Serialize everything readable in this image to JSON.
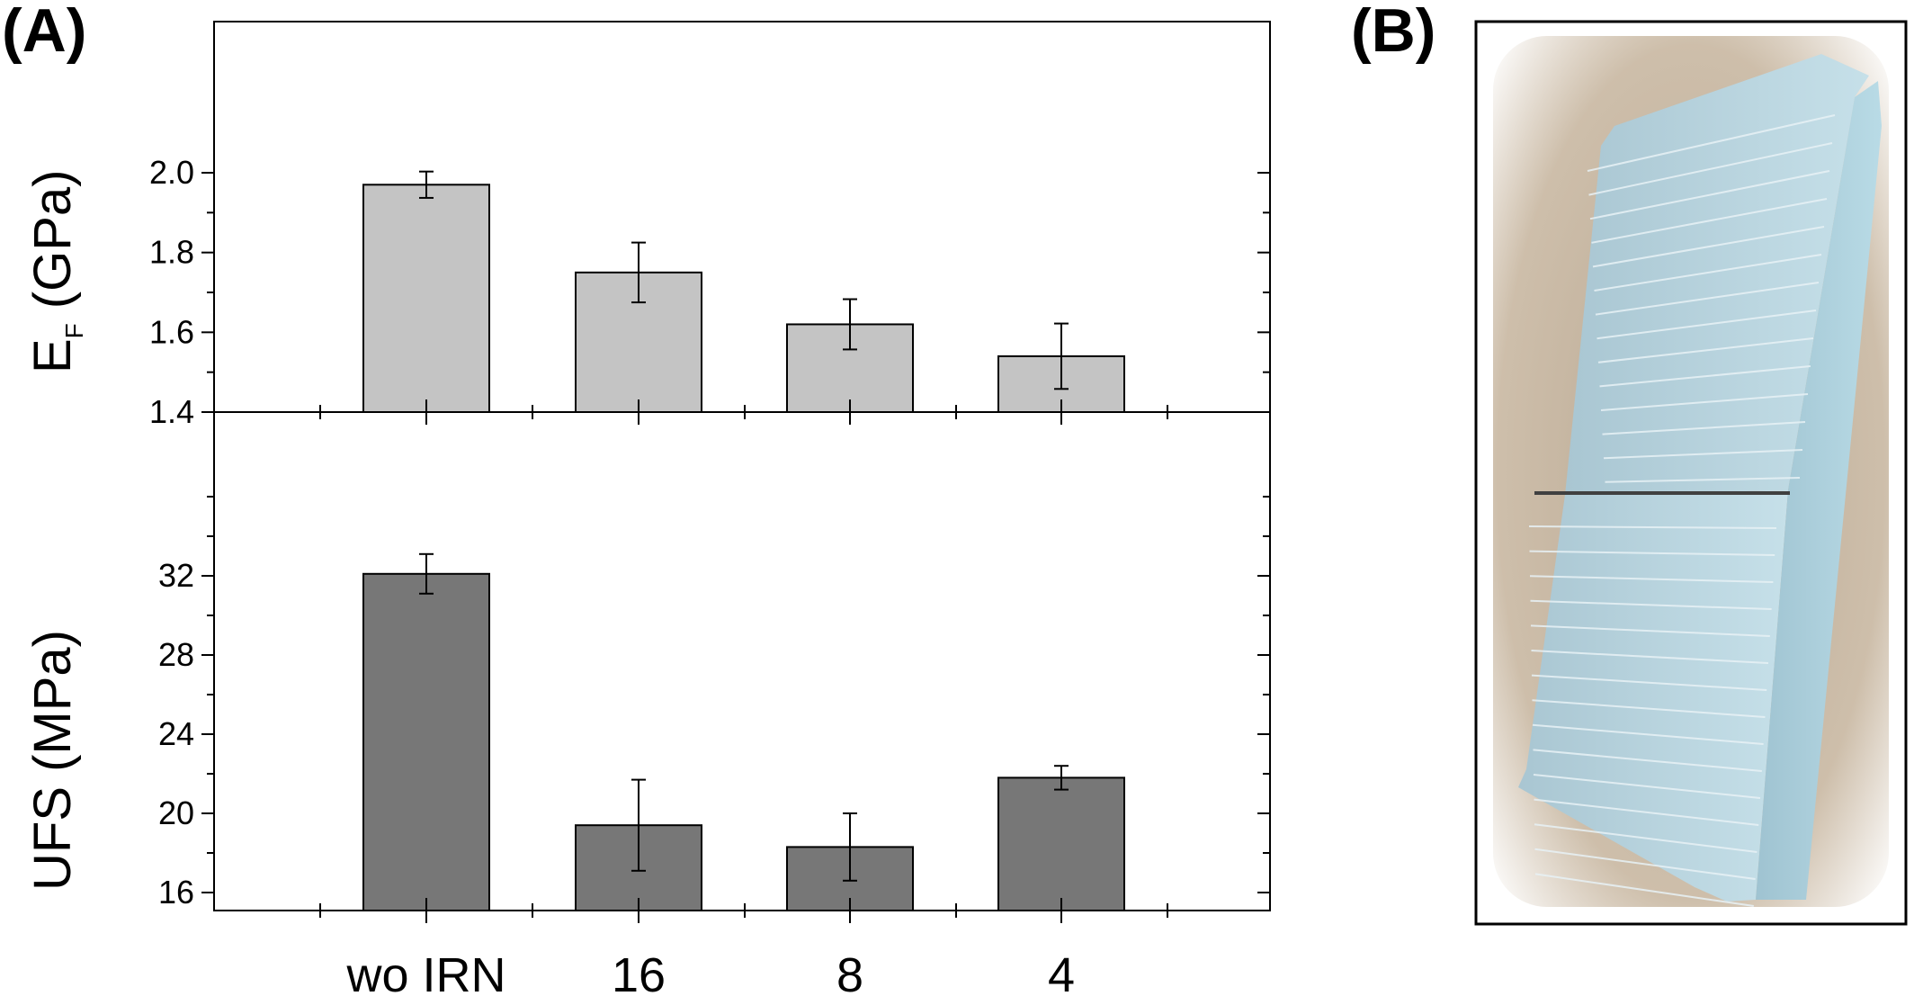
{
  "panels": {
    "a_label": "(A)",
    "b_label": "(B)"
  },
  "chart_data": [
    {
      "type": "bar",
      "categories": [
        "wo IRN",
        "16",
        "8",
        "4"
      ],
      "values": [
        1.97,
        1.75,
        1.62,
        1.54
      ],
      "errors": [
        0.033,
        0.075,
        0.063,
        0.082
      ],
      "ylabel": "E",
      "ylabel_sub": "F",
      "ylabel_unit": "(GPa)",
      "ylim": [
        1.4,
        2.06
      ],
      "yticks": [
        "1.4",
        "1.6",
        "1.8",
        "2.0"
      ],
      "color": "#c4c4c4"
    },
    {
      "type": "bar",
      "categories": [
        "wo IRN",
        "16",
        "8",
        "4"
      ],
      "values": [
        32.1,
        19.4,
        18.3,
        21.8
      ],
      "errors": [
        1.0,
        2.3,
        1.7,
        0.6
      ],
      "ylabel": "UFS (MPa)",
      "ylim": [
        15,
        36
      ],
      "yticks": [
        "16",
        "20",
        "24",
        "28",
        "32"
      ],
      "color": "#777777"
    }
  ],
  "x_tick_labels": [
    "wo IRN",
    "16",
    "8",
    "4"
  ],
  "photo": {
    "subject": "3D-printed light-blue polymer specimen broken across the middle",
    "color": "#b8d4de"
  }
}
